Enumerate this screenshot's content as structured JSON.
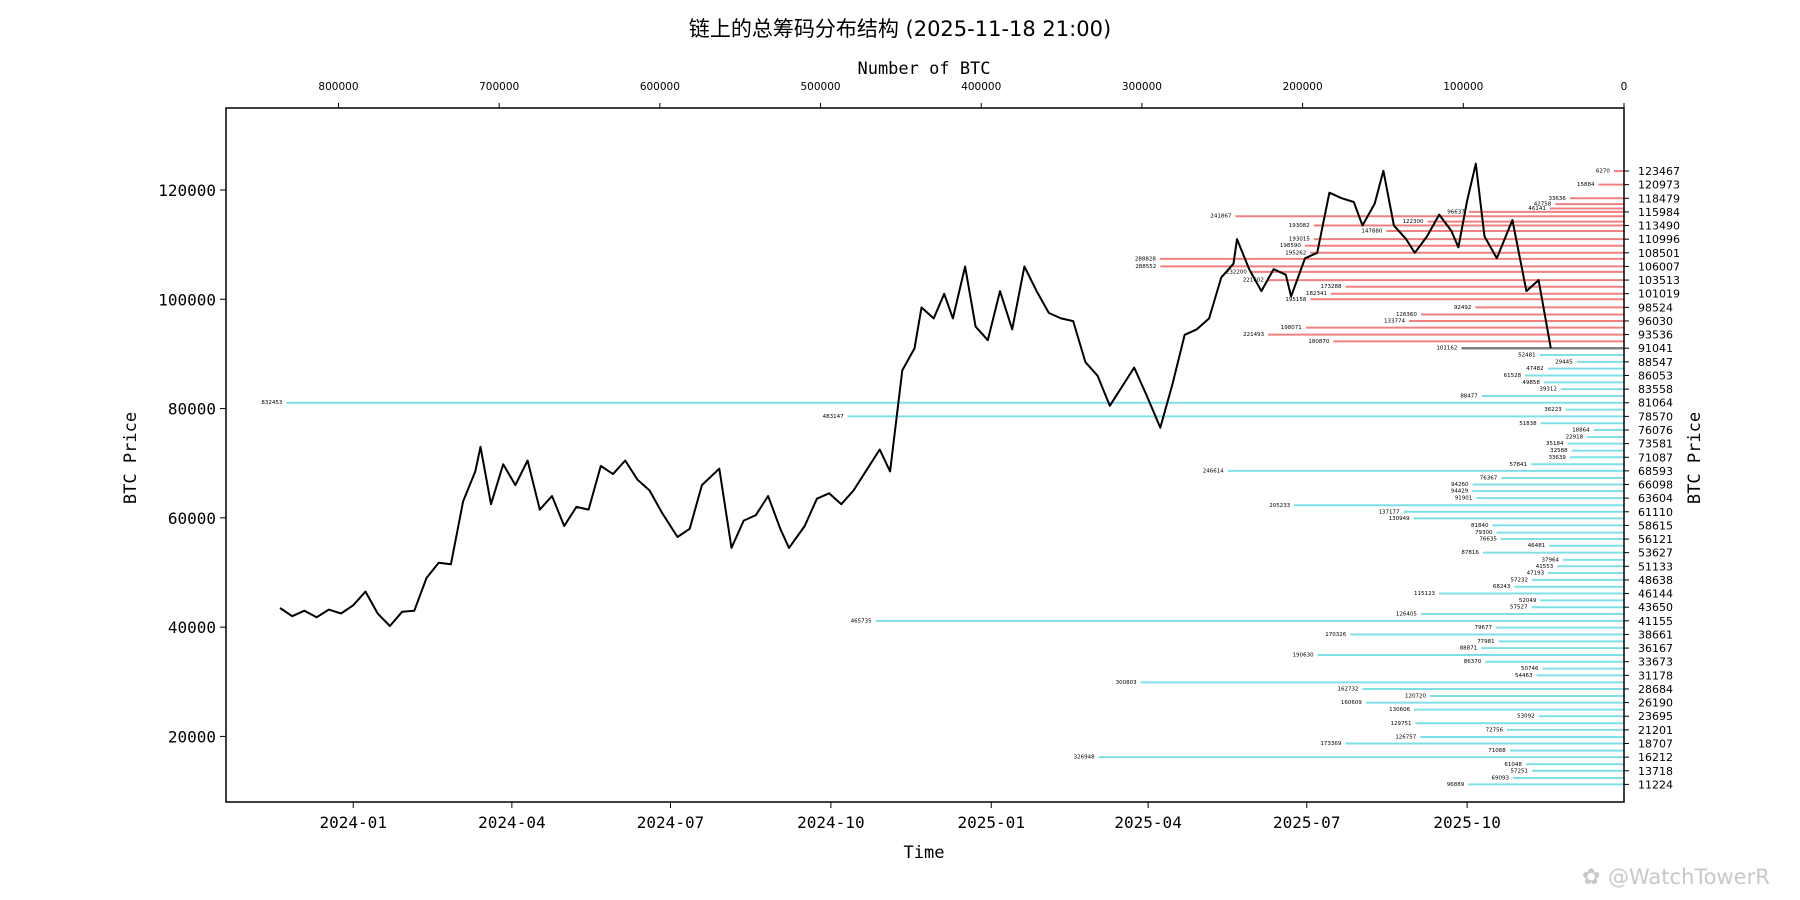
{
  "chart_data": {
    "type": "line",
    "title": "链上的总筹码分布结构 (2025-11-18 21:00)",
    "xlabel": "Time",
    "ylabel_left": "BTC Price",
    "ylabel_right": "BTC Price",
    "top_xlabel": "Number of BTC",
    "watermark": "@WatchTowerR",
    "xlim": [
      "2023-10-20",
      "2025-12-30"
    ],
    "ylim": [
      8000,
      135000
    ],
    "top_xlim": [
      870000,
      0
    ],
    "x_ticks": [
      "2024-01",
      "2024-04",
      "2024-07",
      "2024-10",
      "2025-01",
      "2025-04",
      "2025-07",
      "2025-10"
    ],
    "x_tick_dates": [
      "2024-01-01",
      "2024-04-01",
      "2024-07-01",
      "2024-10-01",
      "2025-01-01",
      "2025-04-01",
      "2025-07-01",
      "2025-10-01"
    ],
    "y_ticks": [
      20000,
      40000,
      60000,
      80000,
      100000,
      120000
    ],
    "top_ticks": [
      800000,
      700000,
      600000,
      500000,
      400000,
      300000,
      200000,
      100000,
      0
    ],
    "current_price": 91041,
    "price_series": {
      "name": "BTC Price",
      "points": [
        [
          "2023-11-20",
          43500
        ],
        [
          "2023-11-27",
          42000
        ],
        [
          "2023-12-04",
          43000
        ],
        [
          "2023-12-11",
          41800
        ],
        [
          "2023-12-18",
          43200
        ],
        [
          "2023-12-25",
          42500
        ],
        [
          "2024-01-01",
          44000
        ],
        [
          "2024-01-08",
          46500
        ],
        [
          "2024-01-15",
          42500
        ],
        [
          "2024-01-22",
          40200
        ],
        [
          "2024-01-29",
          42800
        ],
        [
          "2024-02-05",
          43000
        ],
        [
          "2024-02-12",
          49000
        ],
        [
          "2024-02-19",
          51800
        ],
        [
          "2024-02-26",
          51500
        ],
        [
          "2024-03-04",
          63000
        ],
        [
          "2024-03-11",
          68500
        ],
        [
          "2024-03-14",
          73000
        ],
        [
          "2024-03-20",
          62500
        ],
        [
          "2024-03-27",
          69800
        ],
        [
          "2024-04-03",
          66000
        ],
        [
          "2024-04-10",
          70500
        ],
        [
          "2024-04-17",
          61500
        ],
        [
          "2024-04-24",
          64000
        ],
        [
          "2024-05-01",
          58500
        ],
        [
          "2024-05-08",
          62000
        ],
        [
          "2024-05-15",
          61500
        ],
        [
          "2024-05-22",
          69500
        ],
        [
          "2024-05-29",
          68000
        ],
        [
          "2024-06-05",
          70500
        ],
        [
          "2024-06-12",
          67000
        ],
        [
          "2024-06-19",
          65000
        ],
        [
          "2024-06-26",
          61000
        ],
        [
          "2024-07-05",
          56500
        ],
        [
          "2024-07-12",
          58000
        ],
        [
          "2024-07-19",
          66000
        ],
        [
          "2024-07-29",
          69000
        ],
        [
          "2024-08-05",
          54500
        ],
        [
          "2024-08-12",
          59500
        ],
        [
          "2024-08-19",
          60500
        ],
        [
          "2024-08-26",
          64000
        ],
        [
          "2024-09-02",
          58000
        ],
        [
          "2024-09-07",
          54500
        ],
        [
          "2024-09-16",
          58500
        ],
        [
          "2024-09-23",
          63500
        ],
        [
          "2024-09-30",
          64500
        ],
        [
          "2024-10-07",
          62500
        ],
        [
          "2024-10-14",
          65000
        ],
        [
          "2024-10-21",
          68500
        ],
        [
          "2024-10-29",
          72500
        ],
        [
          "2024-11-04",
          68500
        ],
        [
          "2024-11-11",
          87000
        ],
        [
          "2024-11-18",
          91000
        ],
        [
          "2024-11-22",
          98500
        ],
        [
          "2024-11-29",
          96500
        ],
        [
          "2024-12-05",
          101000
        ],
        [
          "2024-12-10",
          96500
        ],
        [
          "2024-12-17",
          106000
        ],
        [
          "2024-12-23",
          95000
        ],
        [
          "2024-12-30",
          92500
        ],
        [
          "2025-01-06",
          101500
        ],
        [
          "2025-01-13",
          94500
        ],
        [
          "2025-01-20",
          106000
        ],
        [
          "2025-01-27",
          101500
        ],
        [
          "2025-02-03",
          97500
        ],
        [
          "2025-02-10",
          96500
        ],
        [
          "2025-02-17",
          96000
        ],
        [
          "2025-02-24",
          88500
        ],
        [
          "2025-03-03",
          86000
        ],
        [
          "2025-03-10",
          80500
        ],
        [
          "2025-03-17",
          84000
        ],
        [
          "2025-03-24",
          87500
        ],
        [
          "2025-03-31",
          82500
        ],
        [
          "2025-04-08",
          76500
        ],
        [
          "2025-04-15",
          84500
        ],
        [
          "2025-04-22",
          93500
        ],
        [
          "2025-04-29",
          94500
        ],
        [
          "2025-05-06",
          96500
        ],
        [
          "2025-05-13",
          104000
        ],
        [
          "2025-05-20",
          106500
        ],
        [
          "2025-05-22",
          111000
        ],
        [
          "2025-05-29",
          105500
        ],
        [
          "2025-06-05",
          101500
        ],
        [
          "2025-06-12",
          105500
        ],
        [
          "2025-06-19",
          104500
        ],
        [
          "2025-06-22",
          100500
        ],
        [
          "2025-06-30",
          107500
        ],
        [
          "2025-07-07",
          108500
        ],
        [
          "2025-07-14",
          119500
        ],
        [
          "2025-07-21",
          118500
        ],
        [
          "2025-07-28",
          117800
        ],
        [
          "2025-08-02",
          113500
        ],
        [
          "2025-08-09",
          117500
        ],
        [
          "2025-08-14",
          123500
        ],
        [
          "2025-08-20",
          113500
        ],
        [
          "2025-08-27",
          111000
        ],
        [
          "2025-09-01",
          108500
        ],
        [
          "2025-09-08",
          111500
        ],
        [
          "2025-09-15",
          115500
        ],
        [
          "2025-09-22",
          112500
        ],
        [
          "2025-09-26",
          109500
        ],
        [
          "2025-10-01",
          118000
        ],
        [
          "2025-10-06",
          124800
        ],
        [
          "2025-10-11",
          111500
        ],
        [
          "2025-10-18",
          107500
        ],
        [
          "2025-10-27",
          114500
        ],
        [
          "2025-11-04",
          101500
        ],
        [
          "2025-11-11",
          103500
        ],
        [
          "2025-11-18",
          91041
        ]
      ]
    },
    "distribution": [
      {
        "price": 123467,
        "amount": 6270,
        "zone": "above"
      },
      {
        "price": 120973,
        "amount": 15884,
        "zone": "above"
      },
      {
        "price": 118479,
        "amount": 33636,
        "zone": "above"
      },
      {
        "price": 117400,
        "amount": 42758,
        "zone": "above"
      },
      {
        "price": 116600,
        "amount": 46141,
        "zone": "above"
      },
      {
        "price": 115984,
        "amount": 96637,
        "zone": "above"
      },
      {
        "price": 115200,
        "amount": 241867,
        "zone": "above"
      },
      {
        "price": 114200,
        "amount": 122300,
        "zone": "above"
      },
      {
        "price": 113490,
        "amount": 193082,
        "zone": "above"
      },
      {
        "price": 112500,
        "amount": 147880,
        "zone": "above"
      },
      {
        "price": 110996,
        "amount": 193015,
        "zone": "above"
      },
      {
        "price": 109800,
        "amount": 198590,
        "zone": "above"
      },
      {
        "price": 108501,
        "amount": 195262,
        "zone": "above"
      },
      {
        "price": 107400,
        "amount": 288828,
        "zone": "above"
      },
      {
        "price": 106007,
        "amount": 288552,
        "zone": "above"
      },
      {
        "price": 105000,
        "amount": 232200,
        "zone": "above"
      },
      {
        "price": 103513,
        "amount": 221602,
        "zone": "above"
      },
      {
        "price": 102300,
        "amount": 173288,
        "zone": "above"
      },
      {
        "price": 101019,
        "amount": 182341,
        "zone": "above"
      },
      {
        "price": 100000,
        "amount": 195158,
        "zone": "above"
      },
      {
        "price": 98524,
        "amount": 92492,
        "zone": "above"
      },
      {
        "price": 97200,
        "amount": 126360,
        "zone": "above"
      },
      {
        "price": 96030,
        "amount": 133774,
        "zone": "above"
      },
      {
        "price": 94800,
        "amount": 198071,
        "zone": "above"
      },
      {
        "price": 93536,
        "amount": 221493,
        "zone": "above"
      },
      {
        "price": 92300,
        "amount": 180870,
        "zone": "above"
      },
      {
        "price": 91041,
        "amount": 101162,
        "zone": "current"
      },
      {
        "price": 89800,
        "amount": 52481,
        "zone": "below"
      },
      {
        "price": 88547,
        "amount": 29445,
        "zone": "below"
      },
      {
        "price": 87300,
        "amount": 47482,
        "zone": "below"
      },
      {
        "price": 86053,
        "amount": 61528,
        "zone": "below"
      },
      {
        "price": 84800,
        "amount": 49858,
        "zone": "below"
      },
      {
        "price": 83558,
        "amount": 39312,
        "zone": "below"
      },
      {
        "price": 82300,
        "amount": 88477,
        "zone": "below"
      },
      {
        "price": 81064,
        "amount": 832453,
        "zone": "below"
      },
      {
        "price": 79800,
        "amount": 36223,
        "zone": "below"
      },
      {
        "price": 78570,
        "amount": 483147,
        "zone": "below"
      },
      {
        "price": 77300,
        "amount": 51838,
        "zone": "below"
      },
      {
        "price": 76076,
        "amount": 18864,
        "zone": "below"
      },
      {
        "price": 74800,
        "amount": 22918,
        "zone": "below"
      },
      {
        "price": 73581,
        "amount": 35184,
        "zone": "below"
      },
      {
        "price": 72300,
        "amount": 32588,
        "zone": "below"
      },
      {
        "price": 71087,
        "amount": 33639,
        "zone": "below"
      },
      {
        "price": 69800,
        "amount": 57841,
        "zone": "below"
      },
      {
        "price": 68593,
        "amount": 246614,
        "zone": "below"
      },
      {
        "price": 67300,
        "amount": 76367,
        "zone": "below"
      },
      {
        "price": 66098,
        "amount": 94260,
        "zone": "below"
      },
      {
        "price": 64900,
        "amount": 94429,
        "zone": "below"
      },
      {
        "price": 63604,
        "amount": 91901,
        "zone": "below"
      },
      {
        "price": 62300,
        "amount": 205233,
        "zone": "below"
      },
      {
        "price": 61110,
        "amount": 137177,
        "zone": "below"
      },
      {
        "price": 59900,
        "amount": 130949,
        "zone": "below"
      },
      {
        "price": 58615,
        "amount": 81840,
        "zone": "below"
      },
      {
        "price": 57300,
        "amount": 79300,
        "zone": "below"
      },
      {
        "price": 56121,
        "amount": 76635,
        "zone": "below"
      },
      {
        "price": 54900,
        "amount": 46481,
        "zone": "below"
      },
      {
        "price": 53627,
        "amount": 87816,
        "zone": "below"
      },
      {
        "price": 52300,
        "amount": 37964,
        "zone": "below"
      },
      {
        "price": 51133,
        "amount": 41553,
        "zone": "below"
      },
      {
        "price": 49900,
        "amount": 47193,
        "zone": "below"
      },
      {
        "price": 48638,
        "amount": 57232,
        "zone": "below"
      },
      {
        "price": 47400,
        "amount": 68243,
        "zone": "below"
      },
      {
        "price": 46144,
        "amount": 115123,
        "zone": "below"
      },
      {
        "price": 44900,
        "amount": 52049,
        "zone": "below"
      },
      {
        "price": 43650,
        "amount": 57527,
        "zone": "below"
      },
      {
        "price": 42400,
        "amount": 126405,
        "zone": "below"
      },
      {
        "price": 41155,
        "amount": 465735,
        "zone": "below"
      },
      {
        "price": 39900,
        "amount": 79677,
        "zone": "below"
      },
      {
        "price": 38661,
        "amount": 170326,
        "zone": "below"
      },
      {
        "price": 37400,
        "amount": 77981,
        "zone": "below"
      },
      {
        "price": 36167,
        "amount": 88871,
        "zone": "below"
      },
      {
        "price": 34900,
        "amount": 190630,
        "zone": "below"
      },
      {
        "price": 33673,
        "amount": 86370,
        "zone": "below"
      },
      {
        "price": 32400,
        "amount": 50746,
        "zone": "below"
      },
      {
        "price": 31178,
        "amount": 54463,
        "zone": "below"
      },
      {
        "price": 29900,
        "amount": 300803,
        "zone": "below"
      },
      {
        "price": 28684,
        "amount": 162732,
        "zone": "below"
      },
      {
        "price": 27400,
        "amount": 120720,
        "zone": "below"
      },
      {
        "price": 26190,
        "amount": 160609,
        "zone": "below"
      },
      {
        "price": 24900,
        "amount": 130606,
        "zone": "below"
      },
      {
        "price": 23695,
        "amount": 53092,
        "zone": "below"
      },
      {
        "price": 22400,
        "amount": 129751,
        "zone": "below"
      },
      {
        "price": 21201,
        "amount": 72756,
        "zone": "below"
      },
      {
        "price": 19900,
        "amount": 126757,
        "zone": "below"
      },
      {
        "price": 18707,
        "amount": 173369,
        "zone": "below"
      },
      {
        "price": 17400,
        "amount": 71088,
        "zone": "below"
      },
      {
        "price": 16212,
        "amount": 326948,
        "zone": "below"
      },
      {
        "price": 14900,
        "amount": 61048,
        "zone": "below"
      },
      {
        "price": 13718,
        "amount": 57251,
        "zone": "below"
      },
      {
        "price": 12400,
        "amount": 69093,
        "zone": "below"
      },
      {
        "price": 11224,
        "amount": 96889,
        "zone": "below"
      }
    ],
    "right_tick_labels": [
      123467,
      120973,
      118479,
      115984,
      113490,
      110996,
      108501,
      106007,
      103513,
      101019,
      98524,
      96030,
      93536,
      91041,
      88547,
      86053,
      83558,
      81064,
      78570,
      76076,
      73581,
      71087,
      68593,
      66098,
      63604,
      61110,
      58615,
      56121,
      53627,
      51133,
      48638,
      46144,
      43650,
      41155,
      38661,
      36167,
      33673,
      31178,
      28684,
      26190,
      23695,
      21201,
      18707,
      16212,
      13718,
      11224
    ],
    "colors": {
      "above": "#f08080",
      "below": "#7fdfe6",
      "current": "#808080",
      "line": "#000000"
    },
    "grid": false
  }
}
